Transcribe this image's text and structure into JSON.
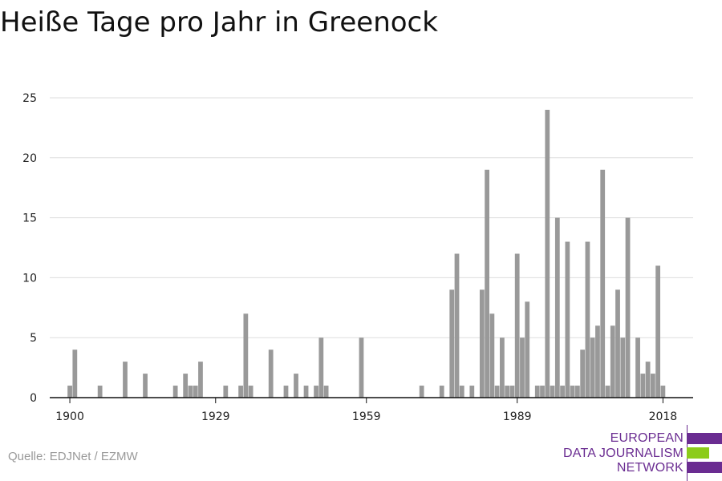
{
  "title": "Heiße Tage pro Jahr in Greenock",
  "source": "Quelle: EDJNet / EZMW",
  "logo": {
    "lines": [
      "EUROPEAN",
      "DATA JOURNALISM",
      "NETWORK"
    ],
    "colors": {
      "purple": "#6a2c91",
      "green": "#8ccc1a"
    }
  },
  "chart_data": {
    "type": "bar",
    "title": "Heiße Tage pro Jahr in Greenock",
    "xlabel": "",
    "ylabel": "",
    "x_ticks": [
      1900,
      1929,
      1959,
      1989,
      2018
    ],
    "y_ticks": [
      0,
      5,
      10,
      15,
      20,
      25
    ],
    "xlim": [
      1896,
      2024
    ],
    "ylim": [
      0,
      25
    ],
    "grid": true,
    "bar_color": "#999999",
    "x": [
      1900,
      1901,
      1906,
      1911,
      1915,
      1921,
      1923,
      1924,
      1925,
      1926,
      1931,
      1934,
      1935,
      1936,
      1940,
      1943,
      1945,
      1947,
      1949,
      1950,
      1951,
      1958,
      1970,
      1974,
      1976,
      1977,
      1978,
      1980,
      1982,
      1983,
      1984,
      1985,
      1986,
      1987,
      1988,
      1989,
      1990,
      1991,
      1993,
      1994,
      1995,
      1996,
      1997,
      1998,
      1999,
      2000,
      2001,
      2002,
      2003,
      2004,
      2005,
      2006,
      2007,
      2008,
      2009,
      2010,
      2011,
      2013,
      2014,
      2015,
      2016,
      2017,
      2018,
      2019
    ],
    "values": [
      1,
      4,
      1,
      3,
      2,
      1,
      2,
      1,
      1,
      3,
      1,
      1,
      7,
      1,
      4,
      1,
      2,
      1,
      1,
      5,
      1,
      5,
      1,
      1,
      9,
      12,
      1,
      1,
      9,
      19,
      7,
      1,
      5,
      1,
      1,
      12,
      5,
      8,
      1,
      1,
      24,
      1,
      15,
      1,
      13,
      1,
      1,
      4,
      13,
      5,
      6,
      19,
      1,
      6,
      9,
      5,
      15,
      5,
      2,
      3,
      2,
      11,
      1,
      0
    ]
  }
}
